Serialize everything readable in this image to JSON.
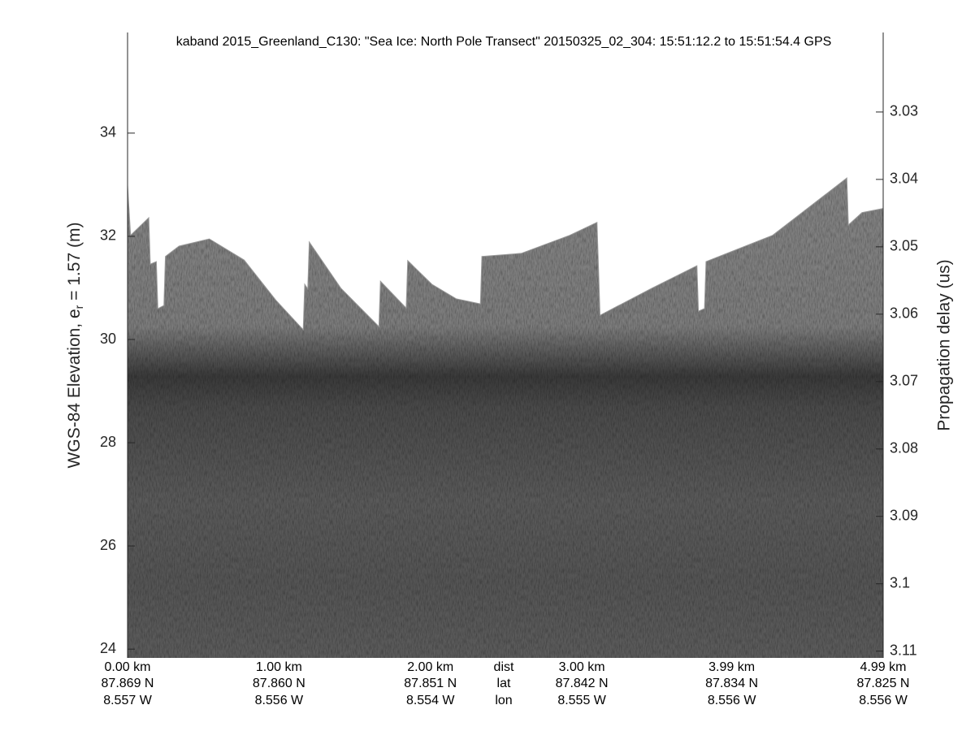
{
  "chart_data": {
    "type": "echogram",
    "title": "kaband 2015_Greenland_C130: \"Sea Ice: North Pole Transect\"  20150325_02_304: 15:51:12.2 to 15:51:54.4 GPS",
    "ylabel": "WGS-84 Elevation, e",
    "ylabel_sub": "r",
    "ylabel_end": " = 1.57 (m)",
    "y2label": "Propagation delay (us)",
    "xlim": [
      0,
      4.99
    ],
    "xticks": [
      {
        "value": 0,
        "label": "0.00 km"
      },
      {
        "value": 1,
        "label": "1.00 km"
      },
      {
        "value": 2,
        "label": "2.00 km"
      },
      {
        "value": 3,
        "label": "3.00 km"
      },
      {
        "value": 3.99,
        "label": "3.99 km"
      },
      {
        "value": 4.99,
        "label": "4.99 km"
      }
    ],
    "lat_labels": [
      "87.869 N",
      "87.860 N",
      "87.851 N",
      "87.842 N",
      "87.834 N",
      "87.825 N"
    ],
    "lon_labels": [
      "8.557 W",
      "8.556 W",
      "8.554 W",
      "8.555 W",
      "8.556 W",
      "8.556 W"
    ],
    "row_labels": [
      "dist",
      "lat",
      "lon"
    ],
    "ylim": [
      23.83,
      35.95
    ],
    "yticks": [
      24,
      26,
      28,
      30,
      32,
      34
    ],
    "y2lim": [
      3.111,
      3.0182
    ],
    "y2ticks": [
      3.03,
      3.04,
      3.05,
      3.06,
      3.07,
      3.08,
      3.09,
      3.1,
      3.11
    ],
    "x": [
      0.0,
      0.02,
      0.14,
      0.15,
      0.19,
      0.2,
      0.24,
      0.25,
      0.34,
      0.54,
      0.77,
      0.98,
      1.16,
      1.17,
      1.19,
      1.2,
      1.41,
      1.66,
      1.67,
      1.84,
      1.85,
      2.01,
      2.17,
      2.33,
      2.34,
      2.6,
      2.92,
      3.1,
      3.11,
      3.12,
      3.46,
      3.76,
      3.77,
      3.81,
      3.82,
      4.26,
      4.75,
      4.76,
      4.85,
      4.99
    ],
    "values": [
      32.99,
      32.02,
      32.36,
      31.46,
      31.51,
      30.6,
      30.66,
      31.61,
      31.81,
      31.95,
      31.54,
      30.76,
      30.19,
      31.07,
      30.98,
      31.89,
      30.99,
      30.25,
      31.13,
      30.61,
      31.53,
      31.07,
      30.79,
      30.69,
      31.61,
      31.67,
      32.02,
      32.27,
      31.39,
      30.47,
      30.99,
      31.43,
      30.55,
      30.6,
      31.51,
      32.02,
      33.13,
      32.22,
      32.46,
      32.54
    ],
    "color": "#9a9a9a"
  }
}
